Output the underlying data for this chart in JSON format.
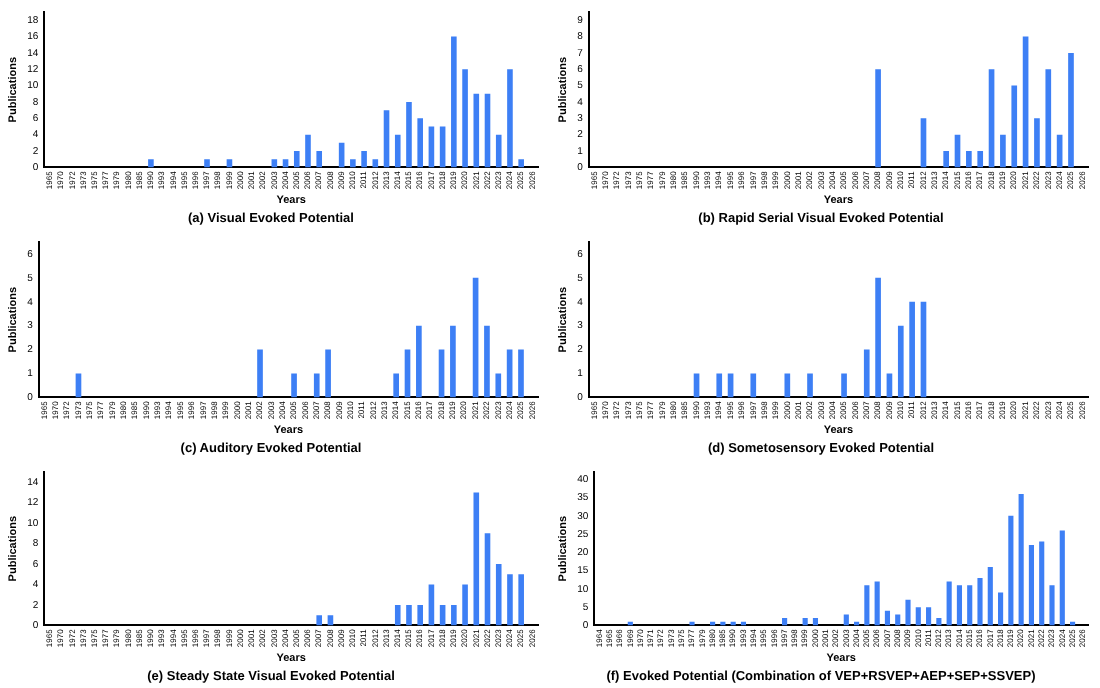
{
  "chart_data": [
    {
      "type": "bar",
      "title": "(a) Visual Evoked Potential",
      "xlabel": "Years",
      "ylabel": "Publications",
      "color": "#3d7ff5",
      "ylim": [
        0,
        19
      ],
      "yticks": [
        0,
        2,
        4,
        6,
        8,
        10,
        12,
        14,
        16,
        18
      ],
      "categories": [
        "1965",
        "1970",
        "1972",
        "1973",
        "1975",
        "1977",
        "1979",
        "1980",
        "1985",
        "1990",
        "1993",
        "1994",
        "1995",
        "1996",
        "1997",
        "1998",
        "1999",
        "2000",
        "2001",
        "2002",
        "2003",
        "2004",
        "2005",
        "2006",
        "2007",
        "2008",
        "2009",
        "2010",
        "2011",
        "2012",
        "2013",
        "2014",
        "2015",
        "2016",
        "2017",
        "2018",
        "2019",
        "2020",
        "2021",
        "2022",
        "2023",
        "2024",
        "2025",
        "2026"
      ],
      "values": [
        0,
        0,
        0,
        0,
        0,
        0,
        0,
        0,
        0,
        1,
        0,
        0,
        0,
        0,
        1,
        0,
        1,
        0,
        0,
        0,
        1,
        1,
        2,
        4,
        2,
        0,
        3,
        1,
        2,
        1,
        7,
        4,
        8,
        6,
        5,
        5,
        16,
        12,
        9,
        9,
        4,
        12,
        1,
        0
      ]
    },
    {
      "type": "bar",
      "title": "(b) Rapid Serial Visual Evoked Potential",
      "xlabel": "Years",
      "ylabel": "Publications",
      "color": "#3d7ff5",
      "ylim": [
        0,
        9.5
      ],
      "yticks": [
        0,
        1,
        2,
        3,
        4,
        5,
        6,
        7,
        8,
        9
      ],
      "categories": [
        "1965",
        "1970",
        "1972",
        "1973",
        "1975",
        "1977",
        "1979",
        "1980",
        "1985",
        "1990",
        "1993",
        "1994",
        "1995",
        "1996",
        "1997",
        "1998",
        "1999",
        "2000",
        "2001",
        "2002",
        "2003",
        "2004",
        "2005",
        "2006",
        "2007",
        "2008",
        "2009",
        "2010",
        "2011",
        "2012",
        "2013",
        "2014",
        "2015",
        "2016",
        "2017",
        "2018",
        "2019",
        "2020",
        "2021",
        "2022",
        "2023",
        "2024",
        "2025",
        "2026"
      ],
      "values": [
        0,
        0,
        0,
        0,
        0,
        0,
        0,
        0,
        0,
        0,
        0,
        0,
        0,
        0,
        0,
        0,
        0,
        0,
        0,
        0,
        0,
        0,
        0,
        0,
        0,
        6,
        0,
        0,
        0,
        3,
        0,
        1,
        2,
        1,
        1,
        6,
        2,
        5,
        8,
        3,
        6,
        2,
        7,
        0
      ]
    },
    {
      "type": "bar",
      "title": "(c) Auditory Evoked Potential",
      "xlabel": "Years",
      "ylabel": "Publications",
      "color": "#3d7ff5",
      "ylim": [
        0,
        6.5
      ],
      "yticks": [
        0,
        1,
        2,
        3,
        4,
        5,
        6
      ],
      "categories": [
        "1965",
        "1970",
        "1972",
        "1973",
        "1975",
        "1977",
        "1979",
        "1980",
        "1985",
        "1990",
        "1993",
        "1994",
        "1995",
        "1996",
        "1997",
        "1998",
        "1999",
        "2000",
        "2001",
        "2002",
        "2003",
        "2004",
        "2005",
        "2006",
        "2007",
        "2008",
        "2009",
        "2010",
        "2011",
        "2012",
        "2013",
        "2014",
        "2015",
        "2016",
        "2017",
        "2018",
        "2019",
        "2020",
        "2021",
        "2022",
        "2023",
        "2024",
        "2025",
        "2026"
      ],
      "values": [
        0,
        0,
        0,
        1,
        0,
        0,
        0,
        0,
        0,
        0,
        0,
        0,
        0,
        0,
        0,
        0,
        0,
        0,
        0,
        2,
        0,
        0,
        1,
        0,
        1,
        2,
        0,
        0,
        0,
        0,
        0,
        1,
        2,
        3,
        0,
        2,
        3,
        0,
        5,
        3,
        1,
        2,
        2,
        0
      ]
    },
    {
      "type": "bar",
      "title": "(d) Sometosensory Evoked Potential",
      "xlabel": "Years",
      "ylabel": "Publications",
      "color": "#3d7ff5",
      "ylim": [
        0,
        6.5
      ],
      "yticks": [
        0,
        1,
        2,
        3,
        4,
        5,
        6
      ],
      "categories": [
        "1965",
        "1970",
        "1972",
        "1973",
        "1975",
        "1977",
        "1979",
        "1980",
        "1985",
        "1990",
        "1993",
        "1994",
        "1995",
        "1996",
        "1997",
        "1998",
        "1999",
        "2000",
        "2001",
        "2002",
        "2003",
        "2004",
        "2005",
        "2006",
        "2007",
        "2008",
        "2009",
        "2010",
        "2011",
        "2012",
        "2013",
        "2014",
        "2015",
        "2016",
        "2017",
        "2018",
        "2019",
        "2020",
        "2021",
        "2022",
        "2023",
        "2024",
        "2025",
        "2026"
      ],
      "values": [
        0,
        0,
        0,
        0,
        0,
        0,
        0,
        0,
        0,
        1,
        0,
        1,
        1,
        0,
        1,
        0,
        0,
        1,
        0,
        1,
        0,
        0,
        1,
        0,
        2,
        5,
        1,
        3,
        4,
        4,
        0,
        0,
        0,
        0,
        0,
        0,
        0,
        0,
        0,
        0,
        0,
        0,
        0,
        0
      ]
    },
    {
      "type": "bar",
      "title": "(e) Steady State Visual Evoked Potential",
      "xlabel": "Years",
      "ylabel": "Publications",
      "color": "#3d7ff5",
      "ylim": [
        0,
        15
      ],
      "yticks": [
        0,
        2,
        4,
        6,
        8,
        10,
        12,
        14
      ],
      "categories": [
        "1965",
        "1970",
        "1972",
        "1973",
        "1975",
        "1977",
        "1979",
        "1980",
        "1985",
        "1990",
        "1993",
        "1994",
        "1995",
        "1996",
        "1997",
        "1998",
        "1999",
        "2000",
        "2001",
        "2002",
        "2003",
        "2004",
        "2005",
        "2006",
        "2007",
        "2008",
        "2009",
        "2010",
        "2011",
        "2012",
        "2013",
        "2014",
        "2015",
        "2016",
        "2017",
        "2018",
        "2019",
        "2020",
        "2021",
        "2022",
        "2023",
        "2024",
        "2025",
        "2026"
      ],
      "values": [
        0,
        0,
        0,
        0,
        0,
        0,
        0,
        0,
        0,
        0,
        0,
        0,
        0,
        0,
        0,
        0,
        0,
        0,
        0,
        0,
        0,
        0,
        0,
        0,
        1,
        1,
        0,
        0,
        0,
        0,
        0,
        2,
        2,
        2,
        4,
        2,
        2,
        4,
        13,
        9,
        6,
        5,
        5,
        0
      ]
    },
    {
      "type": "bar",
      "title": "(f) Evoked Potential (Combination of VEP+RSVEP+AEP+SEP+SSVEP)",
      "xlabel": "Years",
      "ylabel": "Publications",
      "color": "#3d7ff5",
      "ylim": [
        0,
        42
      ],
      "yticks": [
        0,
        5,
        10,
        15,
        20,
        25,
        30,
        35,
        40
      ],
      "categories": [
        "1964",
        "1965",
        "1966",
        "1969",
        "1970",
        "1971",
        "1972",
        "1973",
        "1975",
        "1977",
        "1979",
        "1980",
        "1985",
        "1990",
        "1993",
        "1994",
        "1995",
        "1996",
        "1997",
        "1998",
        "1999",
        "2000",
        "2001",
        "2002",
        "2003",
        "2004",
        "2005",
        "2006",
        "2007",
        "2008",
        "2009",
        "2010",
        "2011",
        "2012",
        "2013",
        "2014",
        "2015",
        "2016",
        "2017",
        "2018",
        "2019",
        "2020",
        "2021",
        "2022",
        "2023",
        "2024",
        "2025",
        "2026"
      ],
      "values": [
        0,
        0,
        0,
        1,
        0,
        0,
        0,
        0,
        0,
        1,
        0,
        1,
        1,
        1,
        1,
        0,
        0,
        0,
        2,
        0,
        2,
        2,
        0,
        0,
        3,
        1,
        11,
        12,
        4,
        3,
        7,
        5,
        5,
        2,
        12,
        11,
        11,
        13,
        16,
        9,
        30,
        36,
        22,
        23,
        11,
        26,
        1,
        0
      ]
    }
  ]
}
